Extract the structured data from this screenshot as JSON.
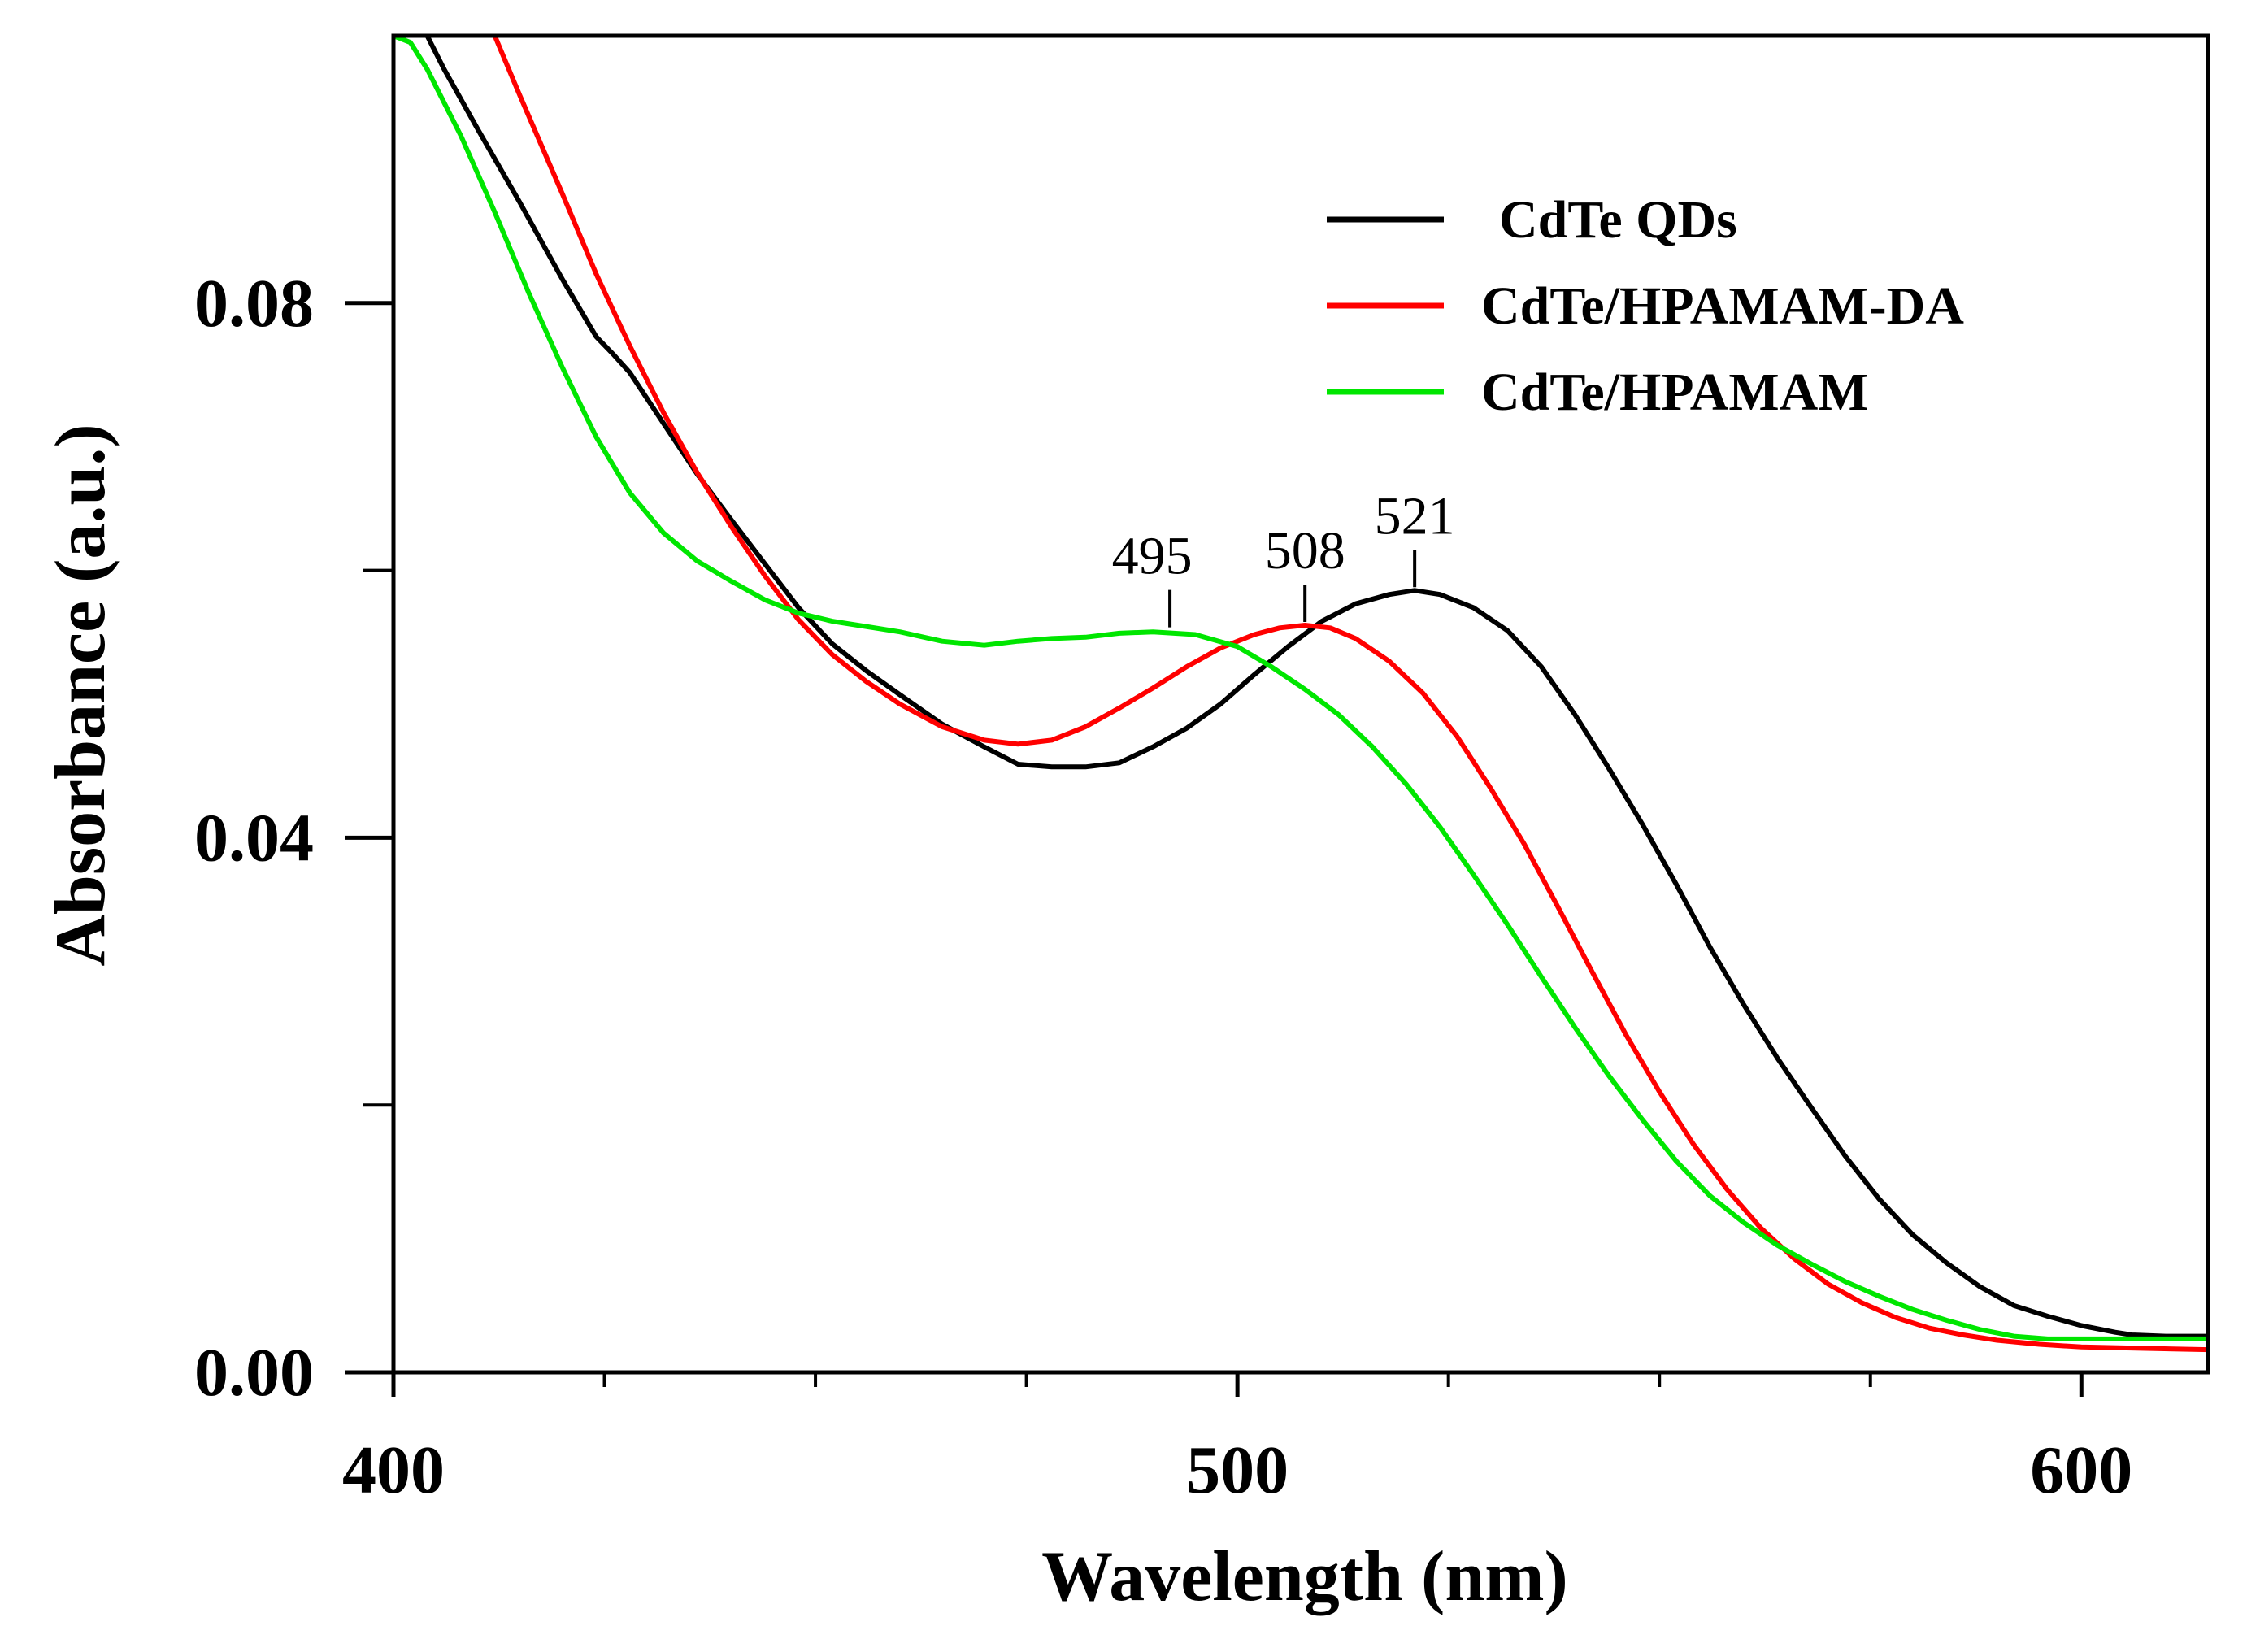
{
  "chart_data": {
    "type": "line",
    "title": "",
    "xlabel": "Wavelength (nm)",
    "ylabel": "Absorbance (a.u.)",
    "xlim": [
      400,
      615
    ],
    "ylim": [
      0.0,
      0.1
    ],
    "x_ticks": [
      400,
      500,
      600
    ],
    "x_tick_labels": [
      "400",
      "500",
      "600"
    ],
    "x_minor_ticks": [
      425,
      450,
      475,
      525,
      550,
      575
    ],
    "y_ticks": [
      0.0,
      0.04,
      0.08
    ],
    "y_tick_labels": [
      "0.00",
      "0.04",
      "0.08"
    ],
    "y_minor_ticks": [
      0.02,
      0.06
    ],
    "legend_position": "top-right",
    "series": [
      {
        "name": "CdTe QDs",
        "color": "#000000",
        "points": [
          [
            404,
            0.1
          ],
          [
            406,
            0.0975
          ],
          [
            410,
            0.093
          ],
          [
            415,
            0.0875
          ],
          [
            420,
            0.0818
          ],
          [
            424,
            0.0775
          ],
          [
            426,
            0.0762
          ],
          [
            428,
            0.0748
          ],
          [
            432,
            0.071
          ],
          [
            436,
            0.0672
          ],
          [
            440,
            0.0638
          ],
          [
            444,
            0.0605
          ],
          [
            448,
            0.0572
          ],
          [
            452,
            0.0545
          ],
          [
            456,
            0.0525
          ],
          [
            460,
            0.0507
          ],
          [
            465,
            0.0485
          ],
          [
            470,
            0.0468
          ],
          [
            474,
            0.0455
          ],
          [
            478,
            0.0453
          ],
          [
            482,
            0.0453
          ],
          [
            486,
            0.0456
          ],
          [
            490,
            0.0468
          ],
          [
            494,
            0.0482
          ],
          [
            498,
            0.05
          ],
          [
            502,
            0.0522
          ],
          [
            506,
            0.0543
          ],
          [
            510,
            0.0562
          ],
          [
            514,
            0.0575
          ],
          [
            518,
            0.0582
          ],
          [
            521,
            0.0585
          ],
          [
            524,
            0.0582
          ],
          [
            528,
            0.0572
          ],
          [
            532,
            0.0555
          ],
          [
            536,
            0.0528
          ],
          [
            540,
            0.0492
          ],
          [
            544,
            0.0452
          ],
          [
            548,
            0.041
          ],
          [
            552,
            0.0365
          ],
          [
            556,
            0.0318
          ],
          [
            560,
            0.0275
          ],
          [
            564,
            0.0235
          ],
          [
            568,
            0.0198
          ],
          [
            572,
            0.0162
          ],
          [
            576,
            0.013
          ],
          [
            580,
            0.0103
          ],
          [
            584,
            0.0082
          ],
          [
            588,
            0.0064
          ],
          [
            592,
            0.005
          ],
          [
            596,
            0.0042
          ],
          [
            600,
            0.0035
          ],
          [
            604,
            0.003
          ],
          [
            606,
            0.0028
          ],
          [
            610,
            0.0027
          ],
          [
            615,
            0.0027
          ]
        ]
      },
      {
        "name": "CdTe/HPAMAM-DA",
        "color": "#ff0000",
        "points": [
          [
            412,
            0.1
          ],
          [
            415,
            0.0955
          ],
          [
            420,
            0.0882
          ],
          [
            424,
            0.0822
          ],
          [
            428,
            0.0768
          ],
          [
            432,
            0.0718
          ],
          [
            436,
            0.0673
          ],
          [
            440,
            0.0633
          ],
          [
            444,
            0.0596
          ],
          [
            448,
            0.0563
          ],
          [
            452,
            0.0537
          ],
          [
            456,
            0.0517
          ],
          [
            460,
            0.05
          ],
          [
            465,
            0.0483
          ],
          [
            470,
            0.0473
          ],
          [
            474,
            0.047
          ],
          [
            478,
            0.0473
          ],
          [
            482,
            0.0483
          ],
          [
            486,
            0.0497
          ],
          [
            490,
            0.0512
          ],
          [
            494,
            0.0528
          ],
          [
            498,
            0.0542
          ],
          [
            502,
            0.0552
          ],
          [
            505,
            0.0557
          ],
          [
            508,
            0.0559
          ],
          [
            511,
            0.0557
          ],
          [
            514,
            0.0549
          ],
          [
            518,
            0.0532
          ],
          [
            522,
            0.0508
          ],
          [
            526,
            0.0476
          ],
          [
            530,
            0.0437
          ],
          [
            534,
            0.0395
          ],
          [
            538,
            0.0348
          ],
          [
            542,
            0.03
          ],
          [
            546,
            0.0253
          ],
          [
            550,
            0.021
          ],
          [
            554,
            0.0171
          ],
          [
            558,
            0.0137
          ],
          [
            562,
            0.0108
          ],
          [
            566,
            0.0085
          ],
          [
            570,
            0.0066
          ],
          [
            574,
            0.0052
          ],
          [
            578,
            0.0041
          ],
          [
            582,
            0.0033
          ],
          [
            586,
            0.0028
          ],
          [
            590,
            0.0024
          ],
          [
            595,
            0.0021
          ],
          [
            600,
            0.0019
          ],
          [
            607,
            0.0018
          ],
          [
            615,
            0.0017
          ]
        ]
      },
      {
        "name": "CdTe/HPAMAM",
        "color": "#00e600",
        "points": [
          [
            400,
            0.1
          ],
          [
            402,
            0.0995
          ],
          [
            404,
            0.0975
          ],
          [
            408,
            0.0925
          ],
          [
            412,
            0.0868
          ],
          [
            416,
            0.0808
          ],
          [
            420,
            0.0752
          ],
          [
            424,
            0.07
          ],
          [
            428,
            0.0658
          ],
          [
            432,
            0.0628
          ],
          [
            436,
            0.0607
          ],
          [
            440,
            0.0592
          ],
          [
            444,
            0.0578
          ],
          [
            448,
            0.0568
          ],
          [
            452,
            0.0562
          ],
          [
            456,
            0.0558
          ],
          [
            460,
            0.0554
          ],
          [
            465,
            0.0547
          ],
          [
            470,
            0.0544
          ],
          [
            474,
            0.0547
          ],
          [
            478,
            0.0549
          ],
          [
            482,
            0.055
          ],
          [
            486,
            0.0553
          ],
          [
            490,
            0.0554
          ],
          [
            495,
            0.0552
          ],
          [
            500,
            0.0543
          ],
          [
            504,
            0.0528
          ],
          [
            508,
            0.0511
          ],
          [
            512,
            0.0492
          ],
          [
            516,
            0.0468
          ],
          [
            520,
            0.044
          ],
          [
            524,
            0.0408
          ],
          [
            528,
            0.0372
          ],
          [
            532,
            0.0335
          ],
          [
            536,
            0.0296
          ],
          [
            540,
            0.0258
          ],
          [
            544,
            0.0222
          ],
          [
            548,
            0.0189
          ],
          [
            552,
            0.0158
          ],
          [
            556,
            0.0132
          ],
          [
            560,
            0.0112
          ],
          [
            564,
            0.0095
          ],
          [
            568,
            0.0081
          ],
          [
            572,
            0.0068
          ],
          [
            576,
            0.0057
          ],
          [
            580,
            0.0047
          ],
          [
            584,
            0.0039
          ],
          [
            588,
            0.0032
          ],
          [
            592,
            0.0027
          ],
          [
            596,
            0.0025
          ],
          [
            600,
            0.0025
          ],
          [
            607,
            0.0025
          ],
          [
            615,
            0.0025
          ]
        ]
      }
    ],
    "annotations": [
      {
        "text": "495",
        "x": 492,
        "y": 0.0555
      },
      {
        "text": "508",
        "x": 508,
        "y": 0.0559
      },
      {
        "text": "521",
        "x": 521,
        "y": 0.0585
      }
    ]
  }
}
